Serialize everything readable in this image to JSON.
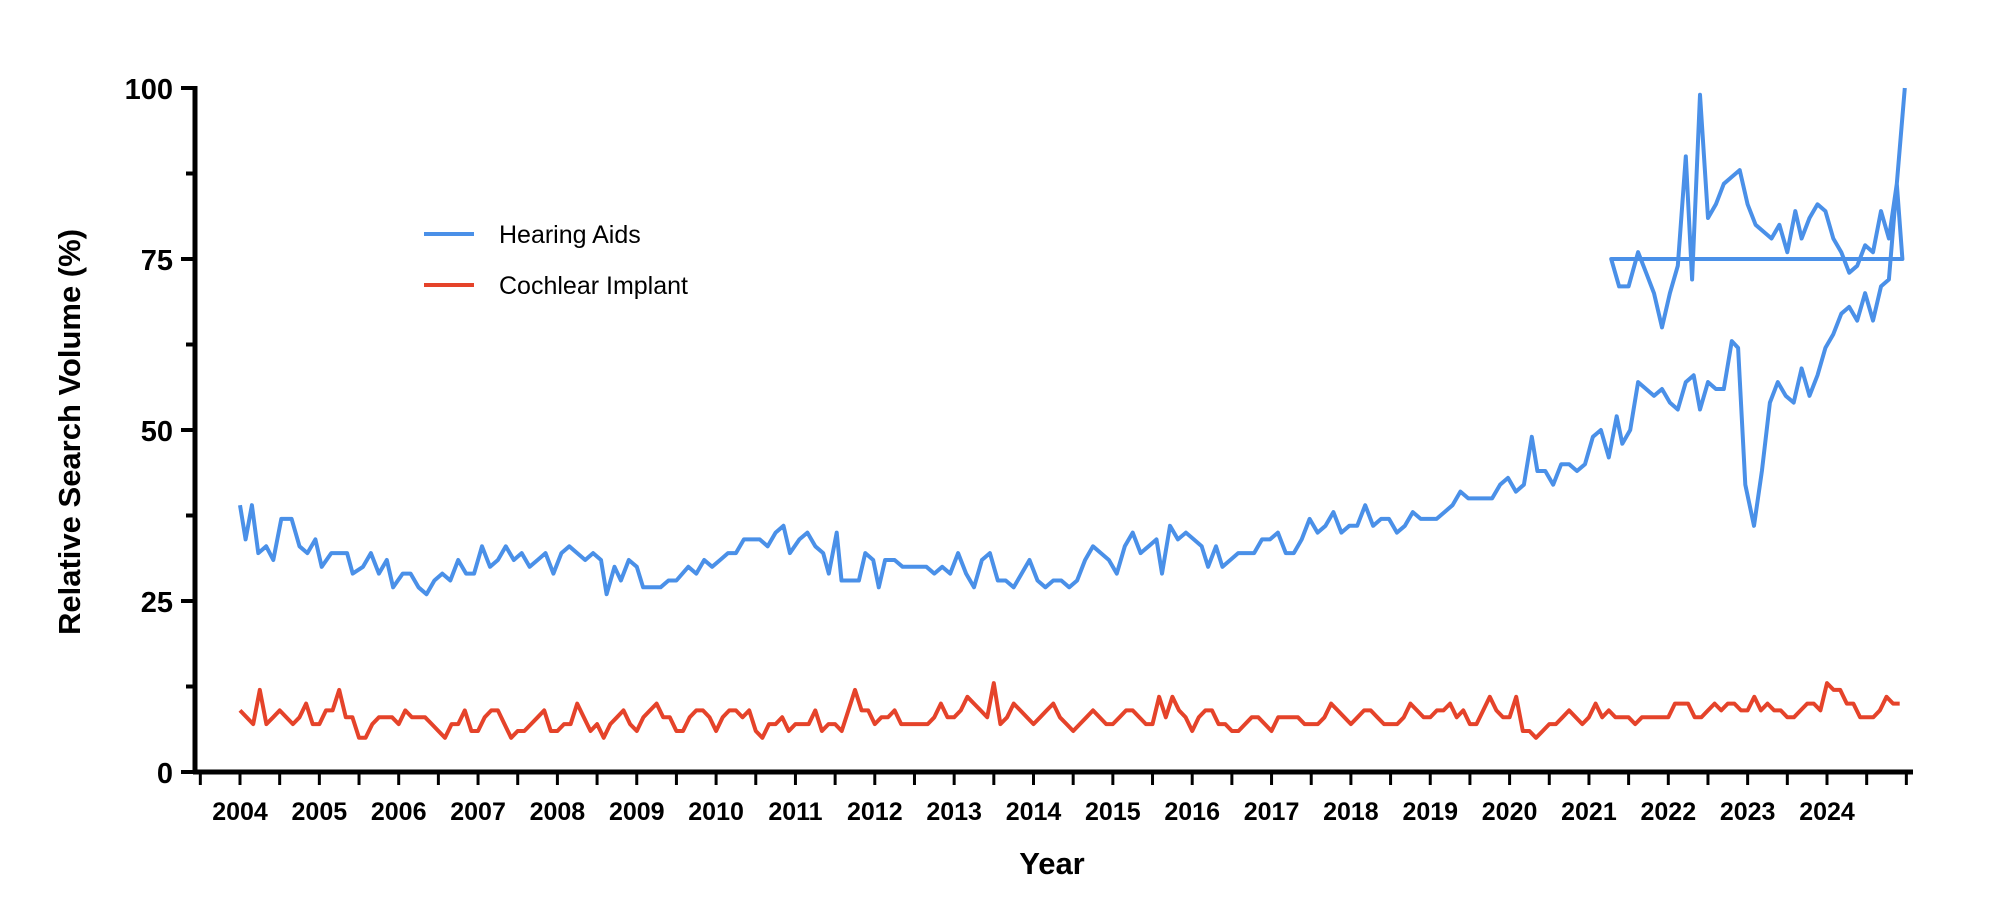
{
  "chart_data": {
    "type": "line",
    "title": "",
    "xlabel": "Year",
    "ylabel": "Relative Search Volume (%)",
    "xlim": [
      2003.42,
      2024.98
    ],
    "ylim": [
      0,
      100
    ],
    "x_ticks": [
      "2004",
      "2005",
      "2006",
      "2007",
      "2008",
      "2009",
      "2010",
      "2011",
      "2012",
      "2013",
      "2014",
      "2015",
      "2016",
      "2017",
      "2018",
      "2019",
      "2020",
      "2021",
      "2022",
      "2023",
      "2024"
    ],
    "y_ticks": [
      "0",
      "25",
      "50",
      "75",
      "100"
    ],
    "minor_y_ticks": [
      12.5,
      37.5,
      62.5,
      87.5
    ],
    "legend_position": "upper-left",
    "x_start": 2004.0,
    "x_step_months": 1,
    "series": [
      {
        "name": "Hearing Aids",
        "color": "#4A90E8",
        "anchors": [
          [
            2004.0,
            39
          ],
          [
            2004.07,
            34
          ],
          [
            2004.15,
            39
          ],
          [
            2004.23,
            32
          ],
          [
            2004.33,
            33
          ],
          [
            2004.42,
            31
          ],
          [
            2004.52,
            37
          ],
          [
            2004.65,
            37
          ],
          [
            2004.75,
            33
          ],
          [
            2004.85,
            32
          ],
          [
            2004.95,
            34
          ],
          [
            2005.03,
            30
          ],
          [
            2005.15,
            32
          ],
          [
            2005.35,
            32
          ],
          [
            2005.42,
            29
          ],
          [
            2005.55,
            30
          ],
          [
            2005.65,
            32
          ],
          [
            2005.75,
            29
          ],
          [
            2005.85,
            31
          ],
          [
            2005.93,
            27
          ],
          [
            2006.05,
            29
          ],
          [
            2006.15,
            29
          ],
          [
            2006.25,
            27
          ],
          [
            2006.35,
            26
          ],
          [
            2006.45,
            28
          ],
          [
            2006.55,
            29
          ],
          [
            2006.65,
            28
          ],
          [
            2006.75,
            31
          ],
          [
            2006.85,
            29
          ],
          [
            2006.95,
            29
          ],
          [
            2007.05,
            33
          ],
          [
            2007.15,
            30
          ],
          [
            2007.25,
            31
          ],
          [
            2007.35,
            33
          ],
          [
            2007.45,
            31
          ],
          [
            2007.55,
            32
          ],
          [
            2007.65,
            30
          ],
          [
            2007.75,
            31
          ],
          [
            2007.85,
            32
          ],
          [
            2007.95,
            29
          ],
          [
            2008.05,
            32
          ],
          [
            2008.15,
            33
          ],
          [
            2008.25,
            32
          ],
          [
            2008.35,
            31
          ],
          [
            2008.45,
            32
          ],
          [
            2008.55,
            31
          ],
          [
            2008.62,
            26
          ],
          [
            2008.72,
            30
          ],
          [
            2008.8,
            28
          ],
          [
            2008.9,
            31
          ],
          [
            2009.0,
            30
          ],
          [
            2009.08,
            27
          ],
          [
            2009.3,
            27
          ],
          [
            2009.4,
            28
          ],
          [
            2009.5,
            28
          ],
          [
            2009.65,
            30
          ],
          [
            2009.75,
            29
          ],
          [
            2009.85,
            31
          ],
          [
            2009.95,
            30
          ],
          [
            2010.05,
            31
          ],
          [
            2010.15,
            32
          ],
          [
            2010.25,
            32
          ],
          [
            2010.35,
            34
          ],
          [
            2010.55,
            34
          ],
          [
            2010.65,
            33
          ],
          [
            2010.75,
            35
          ],
          [
            2010.85,
            36
          ],
          [
            2010.93,
            32
          ],
          [
            2011.05,
            34
          ],
          [
            2011.15,
            35
          ],
          [
            2011.25,
            33
          ],
          [
            2011.35,
            32
          ],
          [
            2011.42,
            29
          ],
          [
            2011.52,
            35
          ],
          [
            2011.58,
            28
          ],
          [
            2011.72,
            28
          ],
          [
            2011.8,
            28
          ],
          [
            2011.88,
            32
          ],
          [
            2011.98,
            31
          ],
          [
            2012.05,
            27
          ],
          [
            2012.13,
            31
          ],
          [
            2012.25,
            31
          ],
          [
            2012.35,
            30
          ],
          [
            2012.65,
            30
          ],
          [
            2012.75,
            29
          ],
          [
            2012.85,
            30
          ],
          [
            2012.95,
            29
          ],
          [
            2013.05,
            32
          ],
          [
            2013.15,
            29
          ],
          [
            2013.25,
            27
          ],
          [
            2013.35,
            31
          ],
          [
            2013.45,
            32
          ],
          [
            2013.55,
            28
          ],
          [
            2013.65,
            28
          ],
          [
            2013.75,
            27
          ],
          [
            2013.85,
            29
          ],
          [
            2013.95,
            31
          ],
          [
            2014.05,
            28
          ],
          [
            2014.15,
            27
          ],
          [
            2014.25,
            28
          ],
          [
            2014.35,
            28
          ],
          [
            2014.45,
            27
          ],
          [
            2014.55,
            28
          ],
          [
            2014.65,
            31
          ],
          [
            2014.75,
            33
          ],
          [
            2014.85,
            32
          ],
          [
            2014.95,
            31
          ],
          [
            2015.05,
            29
          ],
          [
            2015.15,
            33
          ],
          [
            2015.25,
            35
          ],
          [
            2015.35,
            32
          ],
          [
            2015.45,
            33
          ],
          [
            2015.55,
            34
          ],
          [
            2015.62,
            29
          ],
          [
            2015.72,
            36
          ],
          [
            2015.82,
            34
          ],
          [
            2015.92,
            35
          ],
          [
            2016.02,
            34
          ],
          [
            2016.12,
            33
          ],
          [
            2016.2,
            30
          ],
          [
            2016.3,
            33
          ],
          [
            2016.38,
            30
          ],
          [
            2016.48,
            31
          ],
          [
            2016.58,
            32
          ],
          [
            2016.78,
            32
          ],
          [
            2016.88,
            34
          ],
          [
            2016.98,
            34
          ],
          [
            2017.08,
            35
          ],
          [
            2017.18,
            32
          ],
          [
            2017.28,
            32
          ],
          [
            2017.38,
            34
          ],
          [
            2017.48,
            37
          ],
          [
            2017.58,
            35
          ],
          [
            2017.68,
            36
          ],
          [
            2017.78,
            38
          ],
          [
            2017.88,
            35
          ],
          [
            2017.98,
            36
          ],
          [
            2018.08,
            36
          ],
          [
            2018.18,
            39
          ],
          [
            2018.28,
            36
          ],
          [
            2018.38,
            37
          ],
          [
            2018.48,
            37
          ],
          [
            2018.58,
            35
          ],
          [
            2018.68,
            36
          ],
          [
            2018.78,
            38
          ],
          [
            2018.88,
            37
          ],
          [
            2019.08,
            37
          ],
          [
            2019.18,
            38
          ],
          [
            2019.28,
            39
          ],
          [
            2019.38,
            41
          ],
          [
            2019.48,
            40
          ],
          [
            2019.78,
            40
          ],
          [
            2019.88,
            42
          ],
          [
            2019.98,
            43
          ],
          [
            2020.08,
            41
          ],
          [
            2020.18,
            42
          ],
          [
            2020.28,
            49
          ],
          [
            2020.35,
            44
          ],
          [
            2020.45,
            44
          ],
          [
            2020.55,
            42
          ],
          [
            2020.65,
            45
          ],
          [
            2020.75,
            45
          ],
          [
            2020.85,
            44
          ],
          [
            2020.95,
            45
          ],
          [
            2021.05,
            49
          ],
          [
            2021.15,
            50
          ],
          [
            2021.25,
            46
          ],
          [
            2021.35,
            52
          ],
          [
            2021.42,
            48
          ],
          [
            2021.52,
            50
          ],
          [
            2021.62,
            57
          ],
          [
            2021.72,
            56
          ],
          [
            2021.82,
            55
          ],
          [
            2021.92,
            56
          ],
          [
            2022.02,
            54
          ],
          [
            2022.12,
            53
          ],
          [
            2022.22,
            57
          ],
          [
            2022.32,
            58
          ],
          [
            2022.4,
            53
          ],
          [
            2022.5,
            57
          ],
          [
            2022.6,
            56
          ],
          [
            2022.7,
            56
          ],
          [
            2022.8,
            63
          ],
          [
            2022.88,
            62
          ],
          [
            2022.97,
            42
          ],
          [
            2023.08,
            36
          ],
          [
            2023.18,
            44
          ],
          [
            2023.28,
            54
          ],
          [
            2023.38,
            57
          ],
          [
            2023.48,
            55
          ],
          [
            2023.58,
            54
          ],
          [
            2023.68,
            59
          ],
          [
            2023.78,
            55
          ],
          [
            2023.88,
            58
          ],
          [
            2023.98,
            62
          ],
          [
            2024.08,
            64
          ],
          [
            2024.18,
            67
          ],
          [
            2024.28,
            68
          ],
          [
            2024.38,
            66
          ],
          [
            2024.48,
            70
          ],
          [
            2024.58,
            66
          ],
          [
            2024.68,
            71
          ],
          [
            2024.78,
            72
          ],
          [
            2024.88,
            86
          ],
          [
            2024.95,
            75
          ]
        ],
        "tail": [
          [
            2022.08,
            75
          ],
          [
            2022.18,
            71
          ],
          [
            2022.3,
            71
          ],
          [
            2022.42,
            76
          ],
          [
            2022.52,
            73
          ],
          [
            2022.62,
            70
          ],
          [
            2022.72,
            65
          ],
          [
            2022.82,
            70
          ],
          [
            2022.92,
            74
          ],
          [
            2023.02,
            90
          ],
          [
            2023.1,
            72
          ],
          [
            2023.2,
            99
          ],
          [
            2023.3,
            81
          ],
          [
            2023.4,
            83
          ],
          [
            2023.5,
            86
          ],
          [
            2023.6,
            87
          ],
          [
            2023.7,
            88
          ],
          [
            2023.8,
            83
          ],
          [
            2023.9,
            80
          ],
          [
            2024.0,
            79
          ],
          [
            2024.1,
            78
          ],
          [
            2024.2,
            80
          ],
          [
            2024.3,
            76
          ],
          [
            2024.4,
            82
          ],
          [
            2024.48,
            78
          ],
          [
            2024.58,
            81
          ],
          [
            2024.68,
            83
          ],
          [
            2024.78,
            82
          ],
          [
            2024.88,
            78
          ],
          [
            2024.98,
            76
          ],
          [
            2025.08,
            73
          ],
          [
            2025.18,
            74
          ],
          [
            2025.28,
            77
          ],
          [
            2025.38,
            76
          ],
          [
            2025.48,
            82
          ],
          [
            2025.58,
            78
          ],
          [
            2025.68,
            86
          ],
          [
            2025.78,
            100
          ]
        ]
      },
      {
        "name": "Cochlear Implant",
        "color": "#E5432A",
        "values": [
          9,
          8,
          7,
          12,
          7,
          8,
          9,
          8,
          7,
          8,
          10,
          7,
          7,
          9,
          9,
          12,
          8,
          8,
          5,
          5,
          7,
          8,
          8,
          8,
          7,
          9,
          8,
          8,
          8,
          7,
          6,
          5,
          7,
          7,
          9,
          6,
          6,
          8,
          9,
          9,
          7,
          5,
          6,
          6,
          7,
          8,
          9,
          6,
          6,
          7,
          7,
          10,
          8,
          6,
          7,
          5,
          7,
          8,
          9,
          7,
          6,
          8,
          9,
          10,
          8,
          8,
          6,
          6,
          8,
          9,
          9,
          8,
          6,
          8,
          9,
          9,
          8,
          9,
          6,
          5,
          7,
          7,
          8,
          6,
          7,
          7,
          7,
          9,
          6,
          7,
          7,
          6,
          9,
          12,
          9,
          9,
          7,
          8,
          8,
          9,
          7,
          7,
          7,
          7,
          7,
          8,
          10,
          8,
          8,
          9,
          11,
          10,
          9,
          8,
          13,
          7,
          8,
          10,
          9,
          8,
          7,
          8,
          9,
          10,
          8,
          7,
          6,
          7,
          8,
          9,
          8,
          7,
          7,
          8,
          9,
          9,
          8,
          7,
          7,
          11,
          8,
          11,
          9,
          8,
          6,
          8,
          9,
          9,
          7,
          7,
          6,
          6,
          7,
          8,
          8,
          7,
          6,
          8,
          8,
          8,
          8,
          7,
          7,
          7,
          8,
          10,
          9,
          8,
          7,
          8,
          9,
          9,
          8,
          7,
          7,
          7,
          8,
          10,
          9,
          8,
          8,
          9,
          9,
          10,
          8,
          9,
          7,
          7,
          9,
          11,
          9,
          8,
          8,
          11,
          6,
          6,
          5,
          6,
          7,
          7,
          8,
          9,
          8,
          7,
          8,
          10,
          8,
          9,
          8,
          8,
          8,
          7,
          8,
          8,
          8,
          8,
          8,
          10,
          10,
          10,
          8,
          8,
          9,
          10,
          9,
          10,
          10,
          9,
          9,
          11,
          9,
          10,
          9,
          9,
          8,
          8,
          9,
          10,
          10,
          9,
          13,
          12,
          12,
          10,
          10,
          8,
          8,
          8,
          9,
          11,
          10,
          10
        ]
      }
    ]
  }
}
